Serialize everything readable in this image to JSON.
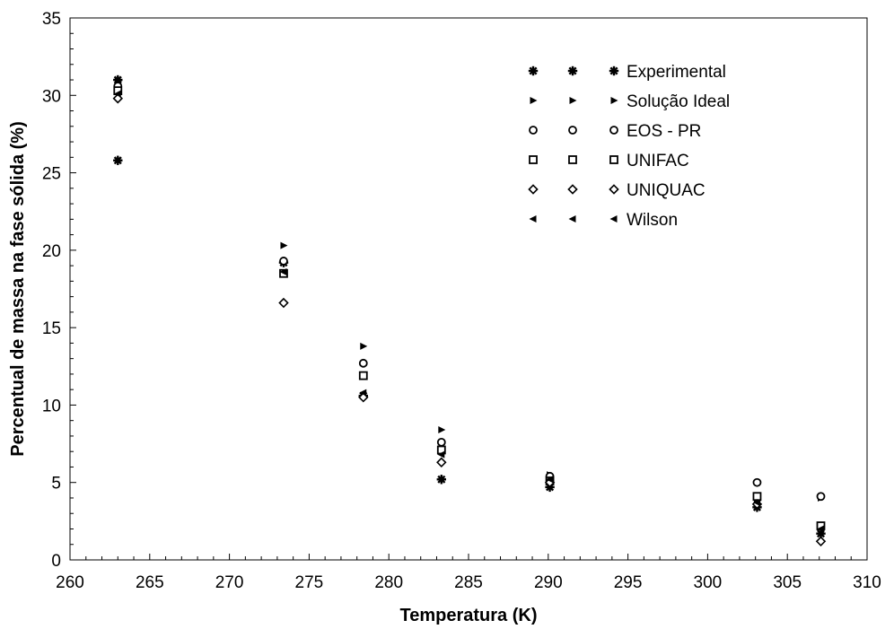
{
  "chart_data": {
    "type": "scatter",
    "xlabel": "Temperatura (K)",
    "ylabel": "Percentual de massa na fase sólida (%)",
    "xlim": [
      260,
      310
    ],
    "ylim": [
      0,
      35
    ],
    "xticks": [
      260,
      265,
      270,
      275,
      280,
      285,
      290,
      295,
      300,
      305,
      310
    ],
    "yticks": [
      0,
      5,
      10,
      15,
      20,
      25,
      30,
      35
    ],
    "grid": false,
    "legend_position": "top-right",
    "series": [
      {
        "name": "Experimental",
        "marker": "star",
        "points": [
          [
            263,
            31.0
          ],
          [
            263,
            25.8
          ],
          [
            273.4,
            19.2
          ],
          [
            278.4,
            10.6
          ],
          [
            283.3,
            5.2
          ],
          [
            290.1,
            4.7
          ],
          [
            303.1,
            3.4
          ],
          [
            307.1,
            1.7
          ]
        ]
      },
      {
        "name": "Solução Ideal",
        "marker": "triangle-right",
        "points": [
          [
            263,
            30.9
          ],
          [
            273.4,
            20.3
          ],
          [
            278.4,
            13.8
          ],
          [
            283.3,
            8.4
          ],
          [
            290.1,
            5.5
          ],
          [
            303.1,
            3.8
          ],
          [
            307.1,
            4.0
          ]
        ]
      },
      {
        "name": "EOS - PR",
        "marker": "circle",
        "points": [
          [
            263,
            30.6
          ],
          [
            273.4,
            19.3
          ],
          [
            278.4,
            12.7
          ],
          [
            283.3,
            7.6
          ],
          [
            290.1,
            5.4
          ],
          [
            303.1,
            5.0
          ],
          [
            307.1,
            4.1
          ]
        ]
      },
      {
        "name": "UNIFAC",
        "marker": "square",
        "points": [
          [
            263,
            30.3
          ],
          [
            273.4,
            18.5
          ],
          [
            278.4,
            11.9
          ],
          [
            283.3,
            7.1
          ],
          [
            290.1,
            5.1
          ],
          [
            303.1,
            4.1
          ],
          [
            307.1,
            2.2
          ]
        ]
      },
      {
        "name": "UNIQUAC",
        "marker": "diamond",
        "points": [
          [
            263,
            29.8
          ],
          [
            273.4,
            16.6
          ],
          [
            278.4,
            10.5
          ],
          [
            283.3,
            6.3
          ],
          [
            290.1,
            5.0
          ],
          [
            303.1,
            3.6
          ],
          [
            307.1,
            1.2
          ]
        ]
      },
      {
        "name": "Wilson",
        "marker": "triangle-left",
        "points": [
          [
            263,
            30.1
          ],
          [
            273.4,
            18.6
          ],
          [
            278.4,
            10.8
          ],
          [
            283.3,
            6.8
          ],
          [
            290.1,
            5.2
          ],
          [
            303.1,
            3.7
          ],
          [
            307.1,
            2.0
          ]
        ]
      }
    ]
  }
}
